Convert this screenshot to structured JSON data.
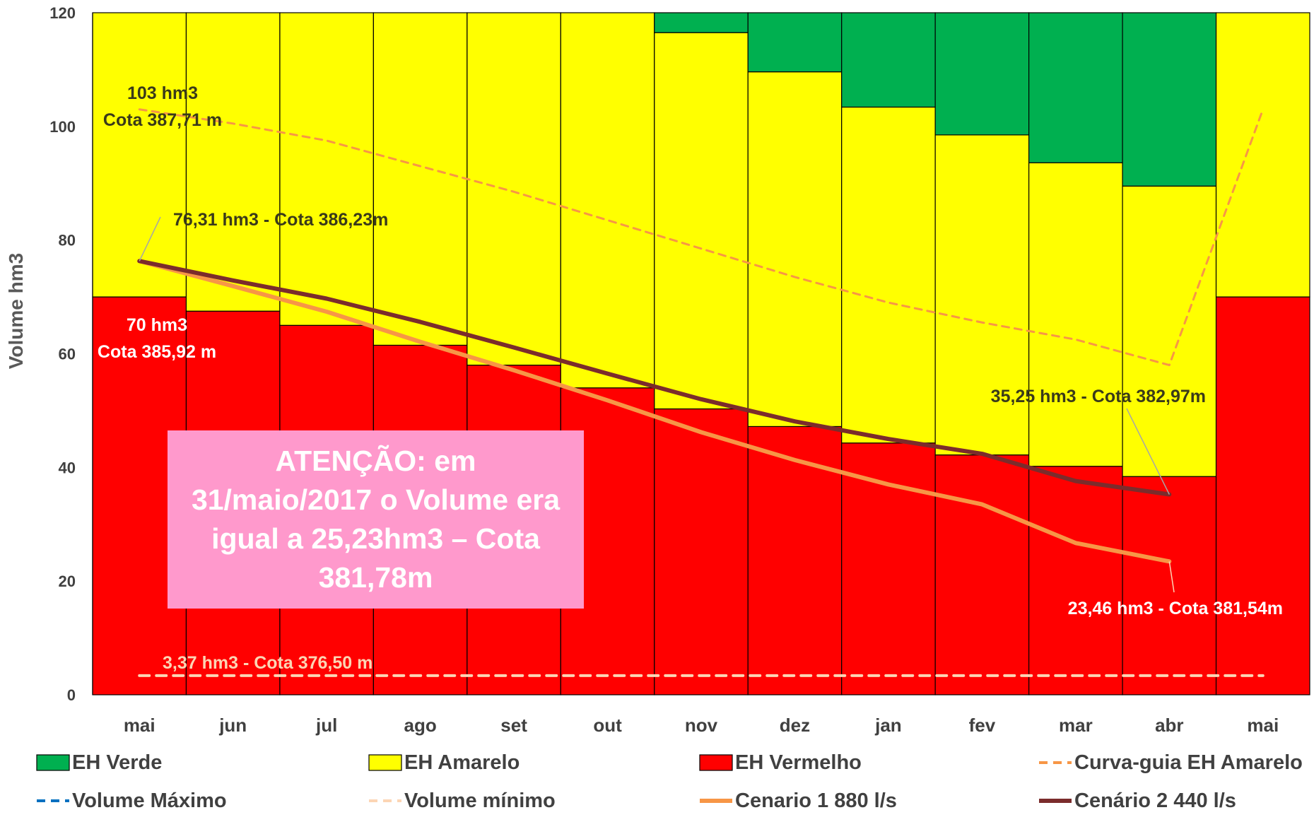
{
  "chart_data": {
    "type": "bar",
    "stacked": true,
    "categories": [
      "mai",
      "jun",
      "jul",
      "ago",
      "set",
      "out",
      "nov",
      "dez",
      "jan",
      "fev",
      "mar",
      "abr",
      "mai"
    ],
    "ylabel": "Volume hm3",
    "ylim": [
      0,
      120
    ],
    "yticks": [
      0,
      20,
      40,
      60,
      80,
      100,
      120
    ],
    "grid": false,
    "legend_position": "bottom",
    "bar_series": [
      {
        "name": "EH Vermelho",
        "color": "#ff0000",
        "values": [
          70,
          67.5,
          65,
          61.5,
          58,
          54,
          50.3,
          47.2,
          44.3,
          42.2,
          40.2,
          38.4,
          70
        ]
      },
      {
        "name": "EH Amarelo",
        "color": "#ffff00",
        "values": [
          50,
          52.5,
          55,
          58.5,
          62,
          66,
          66.2,
          62.4,
          59.1,
          56.3,
          53.4,
          51.1,
          50
        ]
      },
      {
        "name": "EH Verde",
        "color": "#00b050",
        "values": [
          0,
          0,
          0,
          0,
          0,
          0,
          3.5,
          10.4,
          16.6,
          21.5,
          26.4,
          30.5,
          0
        ]
      }
    ],
    "line_series": [
      {
        "name": "Curva-guia EH Amarelo",
        "color": "#f79646",
        "style": "dashed",
        "values": [
          103,
          100.5,
          97.5,
          93,
          88.5,
          83.5,
          78.5,
          73.5,
          69,
          65.5,
          62.5,
          58,
          103
        ]
      },
      {
        "name": "Volume Máximo",
        "color": "#0070c0",
        "style": "dashed",
        "values": []
      },
      {
        "name": "Volume mínimo",
        "color": "#fcd5b4",
        "style": "dashed",
        "values": [
          3.37,
          3.37,
          3.37,
          3.37,
          3.37,
          3.37,
          3.37,
          3.37,
          3.37,
          3.37,
          3.37,
          3.37,
          3.37
        ]
      },
      {
        "name": "Cenario 1 880 l/s",
        "color": "#f79646",
        "style": "solid",
        "values": [
          76.31,
          71.9,
          67.4,
          62.1,
          57.1,
          51.8,
          46.2,
          41.3,
          37,
          33.5,
          26.7,
          23.46
        ]
      },
      {
        "name": "Cenário 2 440 l/s",
        "color": "#7b2c2c",
        "style": "solid",
        "values": [
          76.31,
          72.9,
          69.7,
          65.6,
          61.1,
          56.5,
          52,
          48.1,
          45,
          42.4,
          37.6,
          35.25
        ]
      }
    ],
    "annotations": [
      {
        "id": "max-volume",
        "lines": [
          "103 hm3",
          "Cota 387,71 m"
        ],
        "color": "#3a3a1a"
      },
      {
        "id": "start-volume",
        "lines": [
          "76,31 hm3 - Cota 386,23m"
        ],
        "color": "#3a3a1a"
      },
      {
        "id": "red-threshold",
        "lines": [
          "70 hm3",
          "Cota 385,92 m"
        ],
        "color": "#ffffff"
      },
      {
        "id": "scenario2-end",
        "lines": [
          "35,25 hm3 - Cota 382,97m"
        ],
        "color": "#3a3a1a"
      },
      {
        "id": "scenario1-end",
        "lines": [
          "23,46 hm3 - Cota 381,54m"
        ],
        "color": "#ffffff"
      },
      {
        "id": "min-volume",
        "lines": [
          "3,37 hm3 - Cota 376,50 m"
        ],
        "color": "#fcd5b4"
      }
    ]
  },
  "notice": {
    "text": "ATENÇÃO: em 31/maio/2017 o Volume era igual a 25,23hm3 – Cota 381,78m",
    "background": "#ff99cc"
  },
  "legend": [
    {
      "label": "EH Verde",
      "kind": "box",
      "color": "#00b050"
    },
    {
      "label": "EH Amarelo",
      "kind": "box",
      "color": "#ffff00"
    },
    {
      "label": "EH Vermelho",
      "kind": "box",
      "color": "#ff0000"
    },
    {
      "label": "Curva-guia EH Amarelo",
      "kind": "dash",
      "color": "#f79646"
    },
    {
      "label": "Volume Máximo",
      "kind": "dash",
      "color": "#0070c0"
    },
    {
      "label": "Volume mínimo",
      "kind": "dash",
      "color": "#fcd5b4"
    },
    {
      "label": "Cenario 1 880 l/s",
      "kind": "line",
      "color": "#f79646"
    },
    {
      "label": "Cenário 2 440 l/s",
      "kind": "line",
      "color": "#7b2c2c"
    }
  ]
}
